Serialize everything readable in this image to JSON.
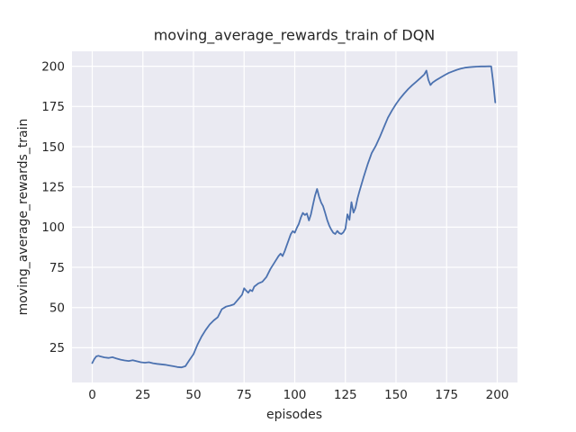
{
  "figure": {
    "background": "#ffffff"
  },
  "chart_data": {
    "type": "line",
    "title": "moving_average_rewards_train of DQN",
    "xlabel": "episodes",
    "ylabel": "moving_average_rewards_train",
    "xlim": [
      -10,
      210
    ],
    "ylim": [
      3.4,
      209.3
    ],
    "xticks": [
      0,
      25,
      50,
      75,
      100,
      125,
      150,
      175,
      200
    ],
    "yticks": [
      25,
      50,
      75,
      100,
      125,
      150,
      175,
      200
    ],
    "grid": true,
    "legend": "none",
    "style": {
      "plot_background": "#eaeaf2",
      "grid_color": "#ffffff",
      "line_color": "#4c72b0",
      "text_color": "#262626"
    },
    "series": [
      {
        "name": "moving_average_rewards_train",
        "points": [
          [
            0,
            15.5
          ],
          [
            1,
            18.0
          ],
          [
            2,
            19.6
          ],
          [
            3,
            20.0
          ],
          [
            4,
            19.6
          ],
          [
            6,
            19.0
          ],
          [
            8,
            18.7
          ],
          [
            10,
            19.1
          ],
          [
            12,
            18.3
          ],
          [
            14,
            17.6
          ],
          [
            16,
            17.1
          ],
          [
            18,
            16.8
          ],
          [
            20,
            17.3
          ],
          [
            22,
            16.6
          ],
          [
            24,
            16.0
          ],
          [
            26,
            15.7
          ],
          [
            28,
            16.0
          ],
          [
            30,
            15.4
          ],
          [
            32,
            15.0
          ],
          [
            34,
            14.7
          ],
          [
            36,
            14.4
          ],
          [
            38,
            14.0
          ],
          [
            40,
            13.5
          ],
          [
            42,
            13.0
          ],
          [
            44,
            12.8
          ],
          [
            46,
            13.5
          ],
          [
            48,
            17.4
          ],
          [
            50,
            21.0
          ],
          [
            52,
            27.0
          ],
          [
            54,
            32.0
          ],
          [
            56,
            36.0
          ],
          [
            58,
            39.5
          ],
          [
            60,
            42.0
          ],
          [
            62,
            44.0
          ],
          [
            64,
            49.0
          ],
          [
            66,
            50.5
          ],
          [
            68,
            51.2
          ],
          [
            70,
            52.0
          ],
          [
            72,
            55.0
          ],
          [
            74,
            58.0
          ],
          [
            75,
            62.0
          ],
          [
            76,
            60.5
          ],
          [
            77,
            59.2
          ],
          [
            78,
            61.0
          ],
          [
            79,
            60.2
          ],
          [
            80,
            63.0
          ],
          [
            82,
            65.0
          ],
          [
            84,
            66.0
          ],
          [
            86,
            69.0
          ],
          [
            88,
            74.0
          ],
          [
            90,
            78.0
          ],
          [
            92,
            82.0
          ],
          [
            93,
            83.5
          ],
          [
            94,
            82.0
          ],
          [
            95,
            85.0
          ],
          [
            96,
            88.5
          ],
          [
            97,
            92.0
          ],
          [
            98,
            95.5
          ],
          [
            99,
            97.5
          ],
          [
            100,
            96.5
          ],
          [
            101,
            99.5
          ],
          [
            102,
            102.0
          ],
          [
            103,
            106.0
          ],
          [
            104,
            108.8
          ],
          [
            105,
            107.5
          ],
          [
            106,
            108.5
          ],
          [
            107,
            104.1
          ],
          [
            108,
            108.0
          ],
          [
            109,
            114.0
          ],
          [
            110,
            119.5
          ],
          [
            111,
            123.7
          ],
          [
            112,
            119.0
          ],
          [
            113,
            115.3
          ],
          [
            114,
            113.0
          ],
          [
            115,
            108.8
          ],
          [
            116,
            104.5
          ],
          [
            117,
            101.0
          ],
          [
            118,
            98.5
          ],
          [
            119,
            96.5
          ],
          [
            120,
            95.7
          ],
          [
            121,
            97.6
          ],
          [
            122,
            96.2
          ],
          [
            123,
            95.7
          ],
          [
            124,
            96.7
          ],
          [
            125,
            99.0
          ],
          [
            126,
            108.0
          ],
          [
            127,
            104.5
          ],
          [
            128,
            115.5
          ],
          [
            129,
            109.0
          ],
          [
            130,
            112.0
          ],
          [
            131,
            118.0
          ],
          [
            132,
            122.5
          ],
          [
            134,
            131.0
          ],
          [
            136,
            139.0
          ],
          [
            138,
            146.0
          ],
          [
            140,
            150.5
          ],
          [
            142,
            156.0
          ],
          [
            144,
            162.0
          ],
          [
            146,
            168.0
          ],
          [
            148,
            172.5
          ],
          [
            150,
            176.5
          ],
          [
            152,
            180.0
          ],
          [
            154,
            183.0
          ],
          [
            156,
            185.8
          ],
          [
            158,
            188.2
          ],
          [
            160,
            190.4
          ],
          [
            162,
            192.6
          ],
          [
            164,
            195.0
          ],
          [
            165,
            197.3
          ],
          [
            166,
            191.5
          ],
          [
            167,
            188.3
          ],
          [
            168,
            189.8
          ],
          [
            170,
            191.5
          ],
          [
            172,
            193.0
          ],
          [
            174,
            194.5
          ],
          [
            176,
            195.8
          ],
          [
            178,
            196.8
          ],
          [
            180,
            197.8
          ],
          [
            182,
            198.5
          ],
          [
            184,
            199.1
          ],
          [
            186,
            199.4
          ],
          [
            188,
            199.6
          ],
          [
            190,
            199.8
          ],
          [
            192,
            199.9
          ],
          [
            194,
            199.9
          ],
          [
            196,
            200.0
          ],
          [
            197,
            199.9
          ],
          [
            198,
            190.0
          ],
          [
            199,
            177.5
          ]
        ]
      }
    ]
  }
}
